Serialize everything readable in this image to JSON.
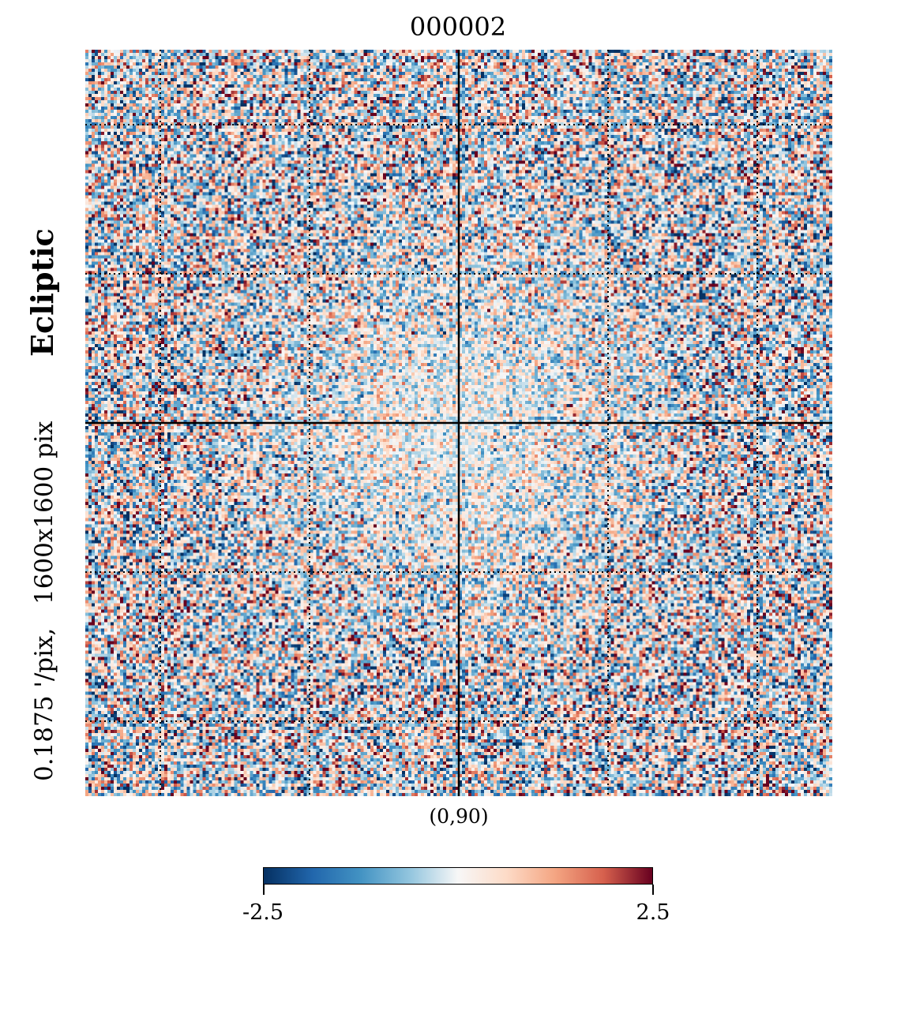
{
  "title": "000002",
  "side_text": {
    "frame": "Ecliptic",
    "resolution": "0.1875 '/pix,   1600x1600 pix"
  },
  "center_coordinate": "(0,90)",
  "colorbar": {
    "min_label": "-2.5",
    "max_label": "2.5",
    "colormap": [
      "#053061",
      "#2166ac",
      "#4393c3",
      "#92c5de",
      "#f7f7f7",
      "#fddbc7",
      "#f4a582",
      "#d6604d",
      "#67001f"
    ]
  },
  "graticule_color": "#000000"
}
